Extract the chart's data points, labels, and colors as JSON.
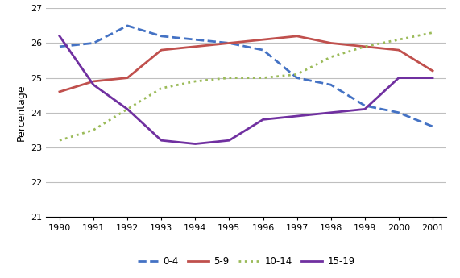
{
  "years": [
    1990,
    1991,
    1992,
    1993,
    1994,
    1995,
    1996,
    1997,
    1998,
    1999,
    2000,
    2001
  ],
  "series": {
    "0-4": [
      25.9,
      26.0,
      26.5,
      26.2,
      26.1,
      26.0,
      25.8,
      25.0,
      24.8,
      24.2,
      24.0,
      23.6
    ],
    "5-9": [
      24.6,
      24.9,
      25.0,
      25.8,
      25.9,
      26.0,
      26.1,
      26.2,
      26.0,
      25.9,
      25.8,
      25.2
    ],
    "10-14": [
      23.2,
      23.5,
      24.1,
      24.7,
      24.9,
      25.0,
      25.0,
      25.1,
      25.6,
      25.9,
      26.1,
      26.3
    ],
    "15-19": [
      26.2,
      24.8,
      24.1,
      23.2,
      23.1,
      23.2,
      23.8,
      23.9,
      24.0,
      24.1,
      25.0,
      25.0
    ]
  },
  "colors": {
    "0-4": "#4472C4",
    "5-9": "#C0504D",
    "10-14": "#9BBB59",
    "15-19": "#7030A0"
  },
  "linestyles": {
    "0-4": "--",
    "5-9": "-",
    "10-14": ":",
    "15-19": "-"
  },
  "ylabel": "Percentage",
  "ylim": [
    21,
    27
  ],
  "yticks": [
    21,
    22,
    23,
    24,
    25,
    26,
    27
  ],
  "legend_order": [
    "0-4",
    "5-9",
    "10-14",
    "15-19"
  ],
  "background_color": "#FFFFFF",
  "grid_color": "#BFBFBF",
  "linewidth": 2.0,
  "legend_fontsize": 8.5,
  "axis_fontsize": 8,
  "ylabel_fontsize": 9
}
